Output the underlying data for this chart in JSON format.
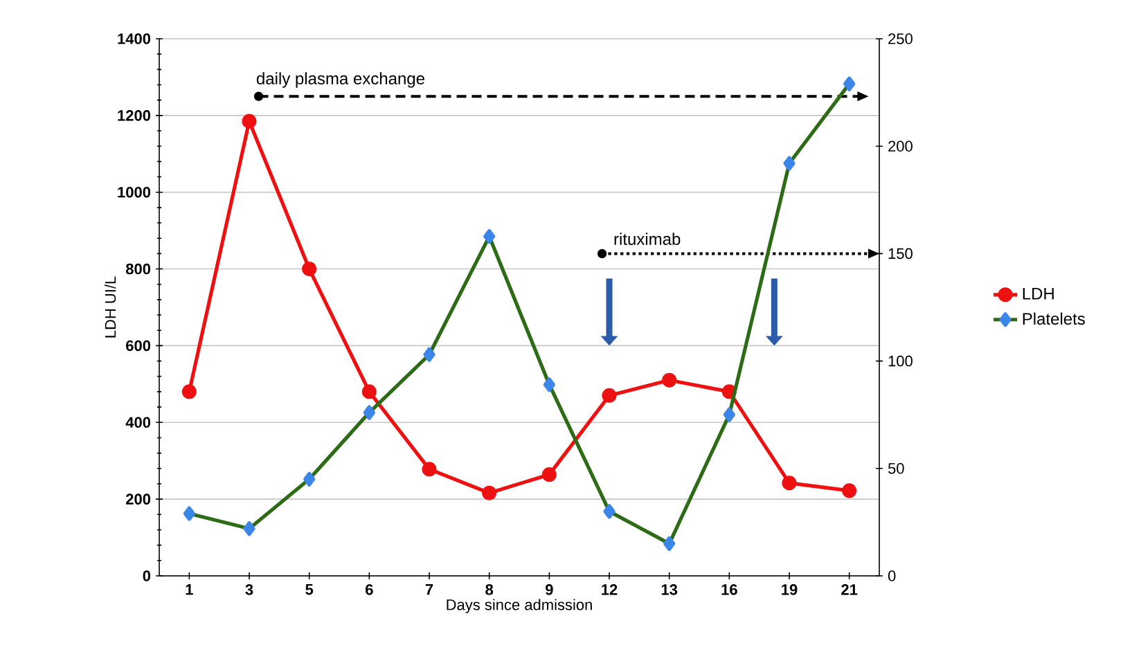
{
  "chart_data": {
    "type": "line",
    "xlabel": "Days since admission",
    "ylabel": "LDH UI/L",
    "categories": [
      "1",
      "3",
      "5",
      "6",
      "7",
      "8",
      "9",
      "12",
      "13",
      "16",
      "19",
      "21"
    ],
    "series": [
      {
        "name": "LDH",
        "color": "#ee1111",
        "marker": "circle",
        "values": [
          480,
          1185,
          800,
          480,
          278,
          216,
          264,
          470,
          510,
          480,
          242,
          222
        ]
      },
      {
        "name": "Platelets",
        "color": "#2e6b17",
        "marker": "diamond",
        "axis": "y2",
        "values": [
          29,
          22,
          45,
          76,
          103,
          158,
          89,
          30,
          15,
          75,
          192,
          229
        ]
      }
    ],
    "ylim": [
      0,
      1400
    ],
    "yticks": [
      0,
      200,
      400,
      600,
      800,
      1000,
      1200,
      1400
    ],
    "y2lim": [
      0,
      250
    ],
    "y2ticks": [
      0,
      50,
      100,
      150,
      200,
      250
    ],
    "grid": "y",
    "legend": "right",
    "line_style": "solid",
    "ref_lines": [
      {
        "axis": "y",
        "value": 1250,
        "label": "daily plasma exchange",
        "color": "#000000",
        "line_style": "dashed"
      },
      {
        "axis": "y",
        "value": 840,
        "label": "rituximab",
        "color": "#000000",
        "line_style": "dotted"
      }
    ]
  }
}
